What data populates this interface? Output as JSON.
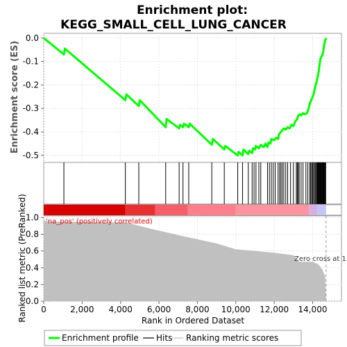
{
  "chart_data": {
    "type": "line",
    "title_line1": "Enrichment plot:",
    "title_line2": "KEGG_SMALL_CELL_LUNG_CANCER",
    "xlabel": "Rank in Ordered Dataset",
    "xlim": [
      0,
      15500
    ],
    "x_ticks": [
      "0",
      "2,000",
      "4,000",
      "6,000",
      "8,000",
      "10,000",
      "12,000",
      "14,000"
    ],
    "x_tick_values": [
      0,
      2000,
      4000,
      6000,
      8000,
      10000,
      12000,
      14000
    ],
    "es_panel": {
      "ylabel": "Enrichment score (ES)",
      "ylim": [
        -0.53,
        0.02
      ],
      "y_ticks": [
        "0.0",
        "-0.1",
        "-0.2",
        "-0.3",
        "-0.4",
        "-0.5"
      ],
      "y_tick_values": [
        0.0,
        -0.1,
        -0.2,
        -0.3,
        -0.4,
        -0.5
      ],
      "series": [
        {
          "name": "Enrichment profile",
          "color": "#00ff00",
          "x": [
            0,
            1050,
            1100,
            4250,
            4300,
            4950,
            5000,
            6350,
            6400,
            7050,
            7100,
            7250,
            7300,
            7550,
            7600,
            8750,
            8800,
            9400,
            9450,
            10100,
            10150,
            10350,
            10400,
            10650,
            10700,
            10850,
            10900,
            11000,
            11050,
            11200,
            11300,
            11450,
            11550,
            11650,
            11700,
            11800,
            11850,
            12000,
            12100,
            12200,
            12250,
            12350,
            12400,
            12500,
            12600,
            12700,
            12800,
            12900,
            13000,
            13100,
            13200,
            13250,
            13350,
            13400,
            13500,
            13600,
            13700,
            13800,
            13850,
            13900,
            13950,
            14050,
            14100,
            14150,
            14200,
            14250,
            14300,
            14350,
            14400,
            14450,
            14500,
            14550,
            14600,
            14650,
            14700
          ],
          "y": [
            0.0,
            -0.07,
            -0.045,
            -0.265,
            -0.24,
            -0.29,
            -0.265,
            -0.38,
            -0.345,
            -0.385,
            -0.37,
            -0.38,
            -0.365,
            -0.38,
            -0.365,
            -0.455,
            -0.43,
            -0.475,
            -0.46,
            -0.5,
            -0.485,
            -0.5,
            -0.475,
            -0.495,
            -0.48,
            -0.49,
            -0.47,
            -0.475,
            -0.46,
            -0.47,
            -0.455,
            -0.465,
            -0.45,
            -0.465,
            -0.445,
            -0.45,
            -0.43,
            -0.435,
            -0.425,
            -0.43,
            -0.41,
            -0.4,
            -0.395,
            -0.385,
            -0.39,
            -0.38,
            -0.385,
            -0.37,
            -0.375,
            -0.355,
            -0.345,
            -0.33,
            -0.325,
            -0.33,
            -0.32,
            -0.325,
            -0.32,
            -0.3,
            -0.28,
            -0.27,
            -0.26,
            -0.24,
            -0.22,
            -0.2,
            -0.19,
            -0.17,
            -0.15,
            -0.12,
            -0.09,
            -0.08,
            -0.075,
            -0.06,
            -0.03,
            -0.01,
            0.0
          ]
        }
      ]
    },
    "hits": [
      1050,
      4250,
      4950,
      6350,
      7050,
      7250,
      7550,
      8750,
      9400,
      10100,
      10350,
      10650,
      10850,
      10950,
      11050,
      11200,
      11300,
      11650,
      11750,
      11850,
      11950,
      12050,
      12200,
      12280,
      12350,
      12420,
      12500,
      12600,
      12700,
      12850,
      13000,
      13150,
      13200,
      13250,
      13300,
      13400,
      13500,
      13650,
      13750,
      13850,
      13900,
      13950,
      14000,
      14050,
      14100,
      14150,
      14200,
      14230,
      14260,
      14290,
      14320,
      14350,
      14380,
      14410,
      14440,
      14470,
      14500,
      14530,
      14560,
      14590,
      14620,
      14650,
      14680
    ],
    "color_bar": {
      "segments": [
        {
          "x0": 0,
          "x1": 4250,
          "color": "#d90000"
        },
        {
          "x0": 4250,
          "x1": 5800,
          "color": "#e83030"
        },
        {
          "x0": 5800,
          "x1": 7500,
          "color": "#f85e6a"
        },
        {
          "x0": 7500,
          "x1": 10000,
          "color": "#ff7f8c"
        },
        {
          "x0": 10000,
          "x1": 13800,
          "color": "#ff93a0"
        },
        {
          "x0": 13800,
          "x1": 14250,
          "color": "#d8b0e0"
        },
        {
          "x0": 14250,
          "x1": 14700,
          "color": "#c4c4ff"
        }
      ]
    },
    "metric_panel": {
      "ylabel": "Ranked list metric (PreRanked)",
      "ylim": [
        0.0,
        1.02
      ],
      "y_ticks": [
        "0.0",
        "0.2",
        "0.4",
        "0.6",
        "0.8",
        "1.0"
      ],
      "y_tick_values": [
        0.0,
        0.2,
        0.4,
        0.6,
        0.8,
        1.0
      ],
      "annotation": "'na_pos' (positively correlated)",
      "zero_cross_label": "Zero cross at 1",
      "zero_cross_x": 14700,
      "series": [
        {
          "name": "Ranking metric scores",
          "color": "#c0c0c0",
          "x": [
            0,
            50,
            300,
            4300,
            5500,
            7000,
            9000,
            10000,
            11000,
            12000,
            13000,
            13300,
            14000,
            14300,
            14500,
            14650,
            14700
          ],
          "y": [
            1.0,
            0.96,
            0.95,
            0.94,
            0.87,
            0.79,
            0.69,
            0.62,
            0.6,
            0.58,
            0.55,
            0.47,
            0.47,
            0.44,
            0.38,
            0.3,
            0.0
          ]
        }
      ]
    },
    "legend": {
      "position": "bottom",
      "items": [
        "Enrichment profile",
        "Hits",
        "Ranking metric scores"
      ]
    }
  }
}
